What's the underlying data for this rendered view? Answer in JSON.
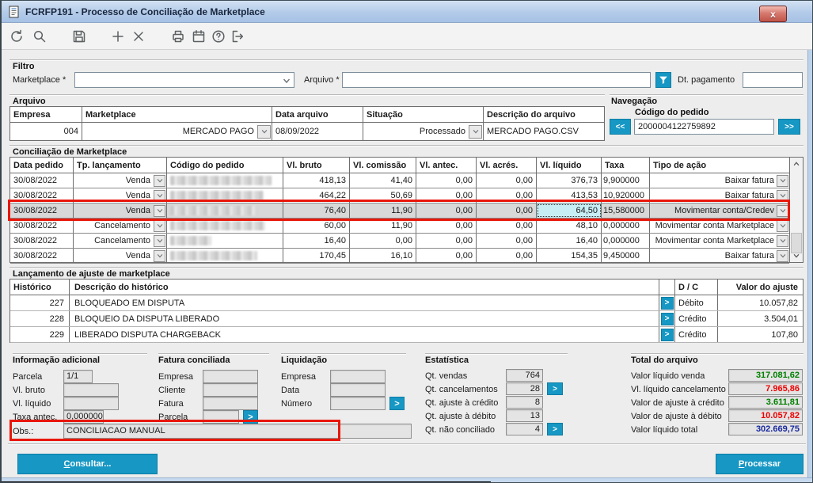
{
  "window": {
    "title": "FCRFP191 - Processo de Conciliação de Marketplace",
    "close_label": "x"
  },
  "toolbar": {
    "icons": [
      "undo-icon",
      "search-icon",
      "save-icon",
      "add-icon",
      "delete-icon",
      "print-icon",
      "calendar-icon",
      "help-icon",
      "exit-icon"
    ]
  },
  "filtro": {
    "title": "Filtro",
    "marketplace_label": "Marketplace *",
    "marketplace_value": "",
    "arquivo_label": "Arquivo *",
    "arquivo_value": "",
    "dt_pagamento_label": "Dt. pagamento",
    "dt_pagamento_value": ""
  },
  "arquivo": {
    "title": "Arquivo",
    "headers": [
      "Empresa",
      "Marketplace",
      "Data arquivo",
      "Situação",
      "Descrição do arquivo"
    ],
    "row": {
      "empresa": "004",
      "marketplace": "MERCADO PAGO",
      "data_arquivo": "08/09/2022",
      "situacao": "Processado",
      "descricao": "MERCADO PAGO.CSV"
    }
  },
  "navegacao": {
    "title": "Navegação",
    "codigo_label": "Código do pedido",
    "codigo_value": "2000004122759892",
    "prev_label": "<<",
    "next_label": ">>"
  },
  "conciliacao": {
    "title": "Conciliação de Marketplace",
    "headers": [
      "Data pedido",
      "Tp. lançamento",
      "Código do pedido",
      "Vl. bruto",
      "Vl. comissão",
      "Vl. antec.",
      "Vl. acrés.",
      "Vl. líquido",
      "Taxa",
      "Tipo de ação"
    ],
    "rows": [
      {
        "data_pedido": "30/08/2022",
        "tp": "Venda",
        "codigo_redacted": true,
        "redact_w": 128,
        "vl_bruto": "418,13",
        "vl_comissao": "41,40",
        "vl_antec": "0,00",
        "vl_acres": "0,00",
        "vl_liquido": "376,73",
        "taxa": "9,900000",
        "acao": "Baixar fatura",
        "selected": false,
        "focused": false
      },
      {
        "data_pedido": "30/08/2022",
        "tp": "Venda",
        "codigo_redacted": true,
        "redact_w": 118,
        "vl_bruto": "464,22",
        "vl_comissao": "50,69",
        "vl_antec": "0,00",
        "vl_acres": "0,00",
        "vl_liquido": "413,53",
        "taxa": "10,920000",
        "acao": "Baixar fatura",
        "selected": false,
        "focused": false
      },
      {
        "data_pedido": "30/08/2022",
        "tp": "Venda",
        "codigo_redacted": true,
        "redact_w": 112,
        "vl_bruto": "76,40",
        "vl_comissao": "11,90",
        "vl_antec": "0,00",
        "vl_acres": "0,00",
        "vl_liquido": "64,50",
        "taxa": "15,580000",
        "acao": "Movimentar conta/Credev",
        "selected": true,
        "focused": true
      },
      {
        "data_pedido": "30/08/2022",
        "tp": "Cancelamento",
        "codigo_redacted": true,
        "redact_w": 120,
        "vl_bruto": "60,00",
        "vl_comissao": "11,90",
        "vl_antec": "0,00",
        "vl_acres": "0,00",
        "vl_liquido": "48,10",
        "taxa": "0,000000",
        "acao": "Movimentar conta Marketplace",
        "selected": false,
        "focused": false
      },
      {
        "data_pedido": "30/08/2022",
        "tp": "Cancelamento",
        "codigo_redacted": true,
        "redact_w": 52,
        "vl_bruto": "16,40",
        "vl_comissao": "0,00",
        "vl_antec": "0,00",
        "vl_acres": "0,00",
        "vl_liquido": "16,40",
        "taxa": "0,000000",
        "acao": "Movimentar conta Marketplace",
        "selected": false,
        "focused": false
      },
      {
        "data_pedido": "30/08/2022",
        "tp": "Venda",
        "codigo_redacted": true,
        "redact_w": 110,
        "vl_bruto": "170,45",
        "vl_comissao": "16,10",
        "vl_antec": "0,00",
        "vl_acres": "0,00",
        "vl_liquido": "154,35",
        "taxa": "9,450000",
        "acao": "Baixar fatura",
        "selected": false,
        "focused": false
      }
    ]
  },
  "ajuste": {
    "title": "Lançamento de ajuste de marketplace",
    "headers": {
      "historico": "Histórico",
      "descricao": "Descrição do histórico",
      "dc": "D / C",
      "valor": "Valor do ajuste"
    },
    "drill_label": ">",
    "rows": [
      {
        "historico": "227",
        "descricao": "BLOQUEADO EM DISPUTA",
        "dc": "Débito",
        "valor": "10.057,82"
      },
      {
        "historico": "228",
        "descricao": "BLOQUEIO DA DISPUTA LIBERADO",
        "dc": "Crédito",
        "valor": "3.504,01"
      },
      {
        "historico": "229",
        "descricao": "LIBERADO DISPUTA CHARGEBACK",
        "dc": "Crédito",
        "valor": "107,80"
      }
    ]
  },
  "info_adicional": {
    "title": "Informação adicional",
    "parcela_label": "Parcela",
    "parcela_value": "1/1",
    "vl_bruto_label": "Vl. bruto",
    "vl_bruto_value": "",
    "vl_liquido_label": "Vl. líquido",
    "vl_liquido_value": "",
    "taxa_antec_label": "Taxa antec.",
    "taxa_antec_value": "0,000000",
    "obs_label": "Obs.:",
    "obs_value": "CONCILIACAO MANUAL"
  },
  "fatura_conciliada": {
    "title": "Fatura conciliada",
    "empresa_label": "Empresa",
    "empresa_value": "",
    "cliente_label": "Cliente",
    "cliente_value": "",
    "fatura_label": "Fatura",
    "fatura_value": "",
    "parcela_label": "Parcela",
    "parcela_value": "",
    "drill_label": ">"
  },
  "liquidacao": {
    "title": "Liquidação",
    "empresa_label": "Empresa",
    "empresa_value": "",
    "data_label": "Data",
    "data_value": "",
    "numero_label": "Número",
    "numero_value": "",
    "drill_label": ">"
  },
  "estatistica": {
    "title": "Estatística",
    "drill_label": ">",
    "rows": [
      {
        "label": "Qt. vendas",
        "value": "764",
        "button": false
      },
      {
        "label": "Qt. cancelamentos",
        "value": "28",
        "button": true
      },
      {
        "label": "Qt. ajuste à crédito",
        "value": "8",
        "button": false
      },
      {
        "label": "Qt. ajuste à débito",
        "value": "13",
        "button": false
      },
      {
        "label": "Qt. não conciliado",
        "value": "4",
        "button": true
      }
    ]
  },
  "total_arquivo": {
    "title": "Total do arquivo",
    "rows": [
      {
        "label": "Valor líquido venda",
        "value": "317.081,62",
        "color": "positive"
      },
      {
        "label": "Vl. líquido cancelamento",
        "value": "7.965,86",
        "color": "negative"
      },
      {
        "label": "Valor de ajuste à crédito",
        "value": "3.611,81",
        "color": "positive"
      },
      {
        "label": "Valor de ajuste à débito",
        "value": "10.057,82",
        "color": "negative"
      },
      {
        "label": "Valor líquido total",
        "value": "302.669,75",
        "color": "total"
      }
    ]
  },
  "footer": {
    "consultar_label": "Consultar...",
    "processar_label": "Processar"
  },
  "colors": {
    "accent": "#1697c4",
    "positive": "#008000",
    "negative": "#ee0000",
    "total": "#1a2a9e",
    "annotation": "#e8170a",
    "selected_row": "#d8d8d8",
    "focused_cell": "#c7eef5"
  }
}
